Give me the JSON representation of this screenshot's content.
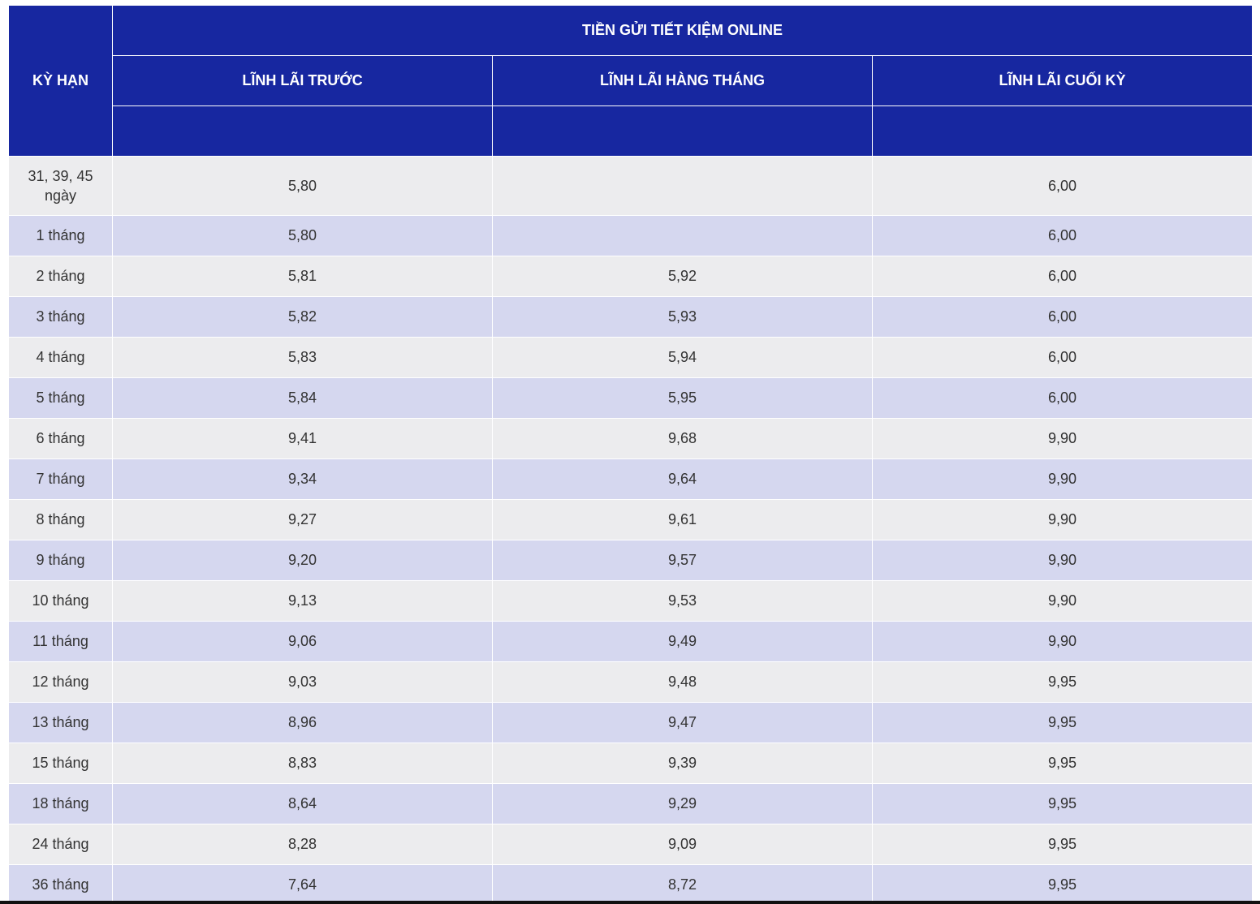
{
  "table": {
    "header": {
      "term": "KỲ HẠN",
      "group": "TIỀN GỬI TIẾT KIỆM ONLINE",
      "columns": [
        "LĨNH LÃI TRƯỚC",
        "LĨNH LÃI HÀNG THÁNG",
        "LĨNH LÃI CUỐI KỲ"
      ]
    },
    "rows": [
      [
        "31, 39, 45 ngày",
        "5,80",
        null,
        "6,00"
      ],
      [
        "1 tháng",
        "5,80",
        null,
        "6,00"
      ],
      [
        "2 tháng",
        "5,81",
        "5,92",
        "6,00"
      ],
      [
        "3 tháng",
        "5,82",
        "5,93",
        "6,00"
      ],
      [
        "4 tháng",
        "5,83",
        "5,94",
        "6,00"
      ],
      [
        "5 tháng",
        "5,84",
        "5,95",
        "6,00"
      ],
      [
        "6 tháng",
        "9,41",
        "9,68",
        "9,90"
      ],
      [
        "7 tháng",
        "9,34",
        "9,64",
        "9,90"
      ],
      [
        "8 tháng",
        "9,27",
        "9,61",
        "9,90"
      ],
      [
        "9 tháng",
        "9,20",
        "9,57",
        "9,90"
      ],
      [
        "10 tháng",
        "9,13",
        "9,53",
        "9,90"
      ],
      [
        "11 tháng",
        "9,06",
        "9,49",
        "9,90"
      ],
      [
        "12 tháng",
        "9,03",
        "9,48",
        "9,95"
      ],
      [
        "13 tháng",
        "8,96",
        "9,47",
        "9,95"
      ],
      [
        "15 tháng",
        "8,83",
        "9,39",
        "9,95"
      ],
      [
        "18 tháng",
        "8,64",
        "9,29",
        "9,95"
      ],
      [
        "24 tháng",
        "8,28",
        "9,09",
        "9,95"
      ],
      [
        "36 tháng",
        "7,64",
        "8,72",
        "9,95"
      ]
    ]
  }
}
